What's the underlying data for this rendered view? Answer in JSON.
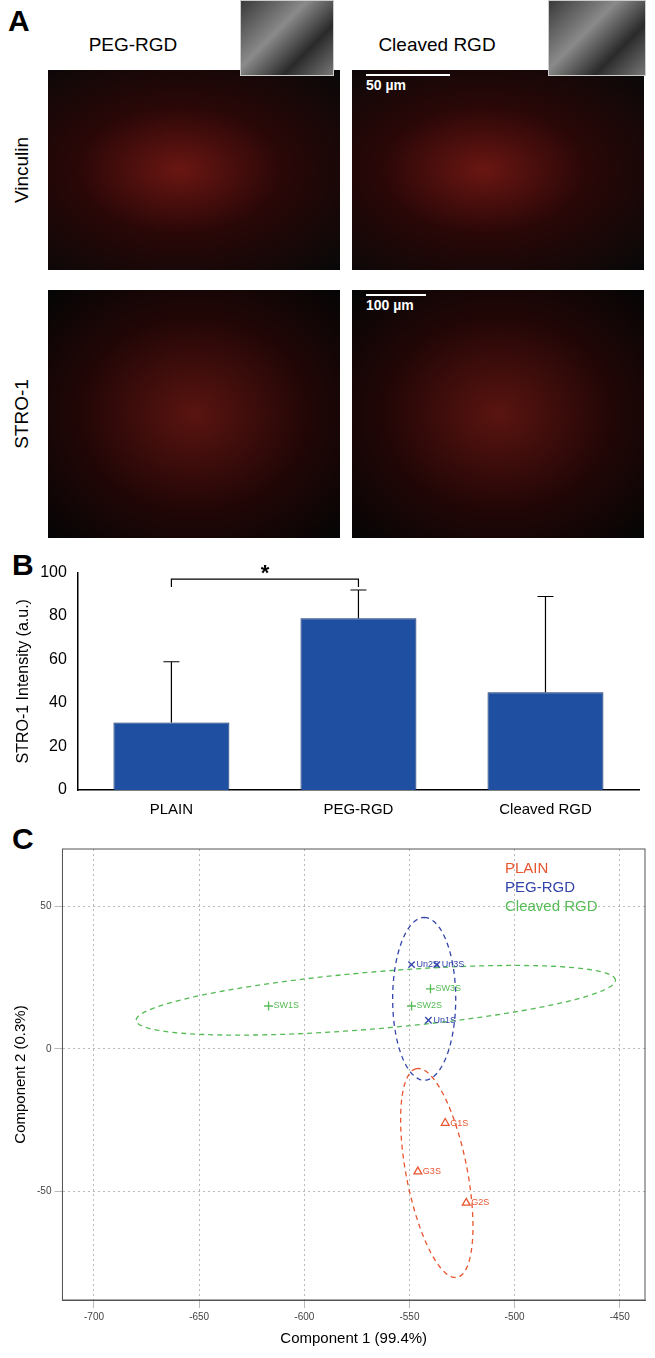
{
  "panel_a": {
    "panel": "A",
    "columns": [
      "PEG-RGD",
      "Cleaved RGD"
    ],
    "rows": [
      "Vinculin",
      "STRO-1"
    ],
    "scale_bars": [
      "50 µm",
      "100 µm"
    ]
  },
  "chart_data": [
    {
      "panel": "B",
      "type": "bar",
      "categories": [
        "PLAIN",
        "PEG-RGD",
        "Cleaved RGD"
      ],
      "values": [
        31,
        79,
        45
      ],
      "errors": [
        28,
        13,
        44
      ],
      "color": "#1f4fa0",
      "y_label": "STRO-1 Intensity (a.u.)",
      "ylim": [
        0,
        100
      ],
      "yticks": [
        0,
        20,
        40,
        60,
        80,
        100
      ],
      "grid": false,
      "annotations": [
        {
          "text": "*",
          "from": "PLAIN",
          "to": "PEG-RGD",
          "y": 97
        }
      ]
    },
    {
      "panel": "C",
      "type": "scatter",
      "x_label": "Component 1 (99.4%)",
      "y_label": "Component 2 (0.3%)",
      "xlim": [
        -715,
        -438
      ],
      "xticks": [
        -700,
        -650,
        -600,
        -550,
        -500,
        -450
      ],
      "ylim": [
        -88,
        70
      ],
      "yticks": [
        -50,
        0,
        50
      ],
      "grid": true,
      "legend": "top-right",
      "series": [
        {
          "name": "PLAIN",
          "color": "#e8552f",
          "marker": "triangle",
          "line_style": "dashed",
          "point_labels": [
            "G1S",
            "G2S",
            "G3S"
          ],
          "x": [
            -533,
            -523,
            -546
          ],
          "y": [
            -26,
            -54,
            -43
          ],
          "ellipse": {
            "center": [
              -537,
              -43.5
            ],
            "axes": [
              [
                -10,
                36.5
              ],
              [
                14,
                3
              ]
            ]
          }
        },
        {
          "name": "PEG-RGD",
          "color": "#3344aa",
          "marker": "x",
          "line_style": "dashed",
          "point_labels": [
            "Un1S",
            "Un2S",
            "Un3S"
          ],
          "x": [
            -541,
            -549,
            -537
          ],
          "y": [
            10,
            29.5,
            29.5
          ],
          "ellipse": {
            "center": [
              -543,
              17.5
            ],
            "axes": [
              [
                0,
                28.5
              ],
              [
                15,
                0
              ]
            ]
          }
        },
        {
          "name": "Cleaved RGD",
          "color": "#55bb55",
          "marker": "+",
          "line_style": "dashed",
          "point_labels": [
            "SW1S",
            "SW2S",
            "SW3S"
          ],
          "x": [
            -617,
            -549,
            -540
          ],
          "y": [
            15,
            15,
            21
          ],
          "ellipse": {
            "center": [
              -566,
              17
            ],
            "axes": [
              [
                114,
                7
              ],
              [
                0,
                10
              ]
            ]
          }
        }
      ]
    }
  ]
}
